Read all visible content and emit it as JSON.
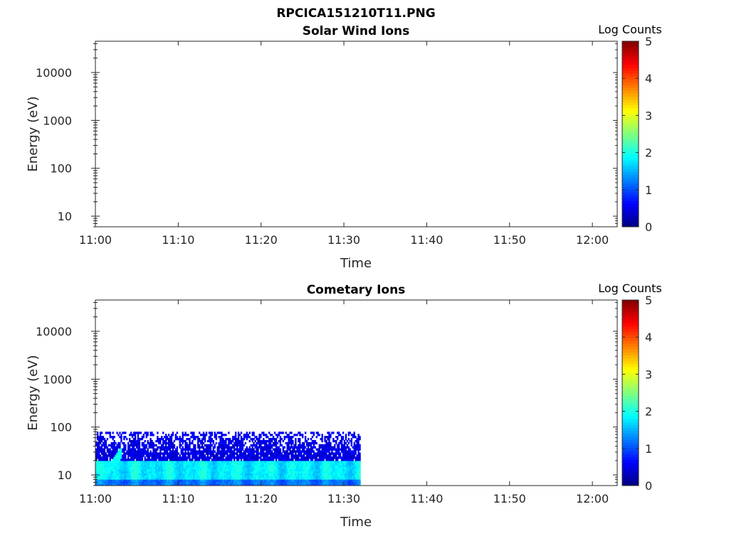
{
  "figure_title": "RPCICA151210T11.PNG",
  "chart_data": [
    {
      "type": "heatmap",
      "title": "Solar Wind Ions",
      "xlabel": "Time",
      "ylabel": "Energy (eV)",
      "x_ticks": [
        "11:00",
        "11:10",
        "11:20",
        "11:30",
        "11:40",
        "11:50",
        "12:00"
      ],
      "xlim_minutes": [
        0,
        63
      ],
      "y_ticks": [
        10,
        100,
        1000,
        10000
      ],
      "ylim": [
        6,
        45000
      ],
      "y_scale": "log",
      "colorbar": {
        "label": "Log Counts",
        "min": 0,
        "max": 5,
        "ticks": [
          0,
          1,
          2,
          3,
          4,
          5
        ],
        "colormap": "jet"
      },
      "data": "no counts (empty panel)"
    },
    {
      "type": "heatmap",
      "title": "Cometary Ions",
      "xlabel": "Time",
      "ylabel": "Energy (eV)",
      "x_ticks": [
        "11:00",
        "11:10",
        "11:20",
        "11:30",
        "11:40",
        "11:50",
        "12:00"
      ],
      "xlim_minutes": [
        0,
        63
      ],
      "y_ticks": [
        10,
        100,
        1000,
        10000
      ],
      "ylim": [
        6,
        45000
      ],
      "y_scale": "log",
      "colorbar": {
        "label": "Log Counts",
        "min": 0,
        "max": 5,
        "ticks": [
          0,
          1,
          2,
          3,
          4,
          5
        ],
        "colormap": "jet"
      },
      "data_time_range": [
        "11:00",
        "11:32"
      ],
      "energy_max_eV": 80,
      "energy_min_eV": 6,
      "energy_peak_eV": [
        8,
        20
      ],
      "log_counts_range": [
        0.2,
        2.0
      ],
      "feature": "enhanced counts rising from ~10 eV to ~30 eV between 11:01 and 11:03"
    }
  ]
}
